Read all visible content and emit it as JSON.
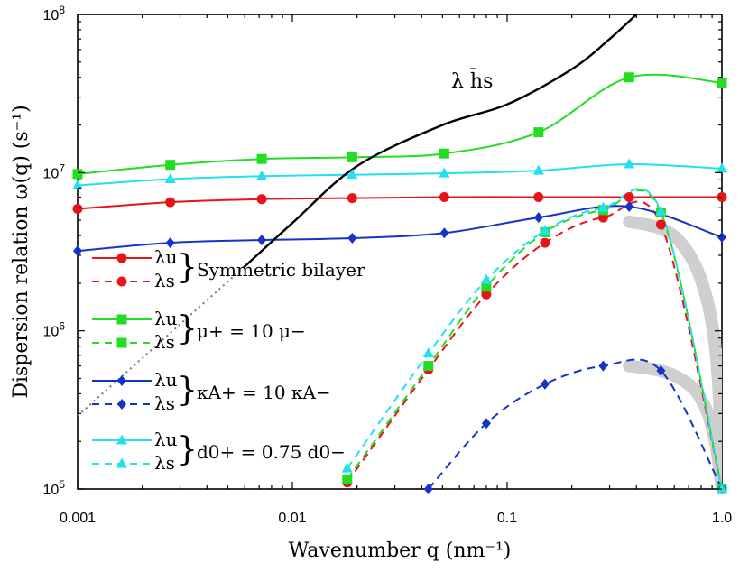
{
  "chart_data": {
    "type": "line",
    "xscale": "log",
    "yscale": "log",
    "xlim": [
      0.001,
      1.0
    ],
    "ylim": [
      100000,
      100000000
    ],
    "x_ticks": [
      "0.001",
      "0.01",
      "0.1",
      "1.0"
    ],
    "y_ticks": [
      {
        "base": "10",
        "exp": "5"
      },
      {
        "base": "10",
        "exp": "6"
      },
      {
        "base": "10",
        "exp": "7"
      },
      {
        "base": "10",
        "exp": "8"
      }
    ],
    "xlabel": "Wavenumber  q (nm⁻¹)",
    "ylabel": "Dispersion relation  ω(q)  (s⁻¹)",
    "annotation": "λ h̄s",
    "legend": [
      {
        "group": "Symmetric bilayer",
        "u": "λu",
        "s": "λs",
        "color": "#e8141c"
      },
      {
        "group": "μ+ = 10 μ−",
        "u": "λu",
        "s": "λs",
        "color": "#22dd22"
      },
      {
        "group": "κA+ = 10 κA−",
        "u": "λu",
        "s": "λs",
        "color": "#1633c8"
      },
      {
        "group": "d0+ = 0.75 d0−",
        "u": "λu",
        "s": "λs",
        "color": "#22e0ee"
      }
    ],
    "series": [
      {
        "key": "red_u",
        "color": "#e8141c",
        "dash": false,
        "marker": "circle",
        "x": [
          0.001,
          0.0027,
          0.0072,
          0.019,
          0.051,
          0.14,
          0.37,
          1.0
        ],
        "y": [
          5900000,
          6500000,
          6800000,
          6900000,
          7000000,
          7000000,
          7000000,
          7000000
        ]
      },
      {
        "key": "red_s",
        "color": "#e8141c",
        "dash": true,
        "marker": "circle",
        "x": [
          0.018,
          0.043,
          0.08,
          0.15,
          0.28,
          0.52,
          1.0
        ],
        "y": [
          110000,
          570000,
          1700000,
          3600000,
          5200000,
          4700000,
          100000
        ]
      },
      {
        "key": "green_u",
        "color": "#22dd22",
        "dash": false,
        "marker": "square",
        "x": [
          0.001,
          0.0027,
          0.0072,
          0.019,
          0.051,
          0.14,
          0.37,
          1.0
        ],
        "y": [
          9800000,
          11200000,
          12200000,
          12500000,
          13200000,
          18000000,
          40000000,
          37000000
        ]
      },
      {
        "key": "green_s",
        "color": "#22dd22",
        "dash": true,
        "marker": "square",
        "x": [
          0.018,
          0.043,
          0.08,
          0.15,
          0.28,
          0.52,
          1.0
        ],
        "y": [
          115000,
          600000,
          1900000,
          4200000,
          5800000,
          5600000,
          100000
        ]
      },
      {
        "key": "blue_u",
        "color": "#1633c8",
        "dash": false,
        "marker": "diamond",
        "x": [
          0.001,
          0.0027,
          0.0072,
          0.019,
          0.051,
          0.14,
          0.37,
          1.0
        ],
        "y": [
          3200000,
          3600000,
          3750000,
          3850000,
          4150000,
          5200000,
          6100000,
          3900000
        ]
      },
      {
        "key": "blue_s",
        "color": "#1633c8",
        "dash": true,
        "marker": "diamond",
        "x": [
          0.043,
          0.08,
          0.15,
          0.28,
          0.52,
          1.0
        ],
        "y": [
          100000,
          260000,
          460000,
          600000,
          560000,
          100000
        ]
      },
      {
        "key": "cyan_u",
        "color": "#22e0ee",
        "dash": false,
        "marker": "triangle",
        "x": [
          0.001,
          0.0027,
          0.0072,
          0.019,
          0.051,
          0.14,
          0.37,
          1.0
        ],
        "y": [
          8300000,
          9100000,
          9500000,
          9700000,
          9900000,
          10300000,
          11300000,
          10600000
        ]
      },
      {
        "key": "cyan_s",
        "color": "#22e0ee",
        "dash": true,
        "marker": "triangle",
        "x": [
          0.018,
          0.043,
          0.08,
          0.15,
          0.28,
          0.52,
          1.0
        ],
        "y": [
          135000,
          720000,
          2100000,
          4300000,
          6000000,
          5700000,
          100000
        ]
      },
      {
        "key": "black_hs",
        "color": "#000000",
        "dash": false,
        "marker": "none",
        "x": [
          0.0059,
          0.01,
          0.02,
          0.05,
          0.1,
          0.2,
          0.3,
          0.4
        ],
        "y": [
          2500000,
          4800000,
          11000000,
          20000000,
          27000000,
          45000000,
          70000000,
          100000000
        ]
      },
      {
        "key": "black_hs_extrap",
        "color": "#777777",
        "dash": "dotted",
        "marker": "none",
        "x": [
          0.001,
          0.0059
        ],
        "y": [
          290000,
          2500000
        ]
      }
    ]
  }
}
